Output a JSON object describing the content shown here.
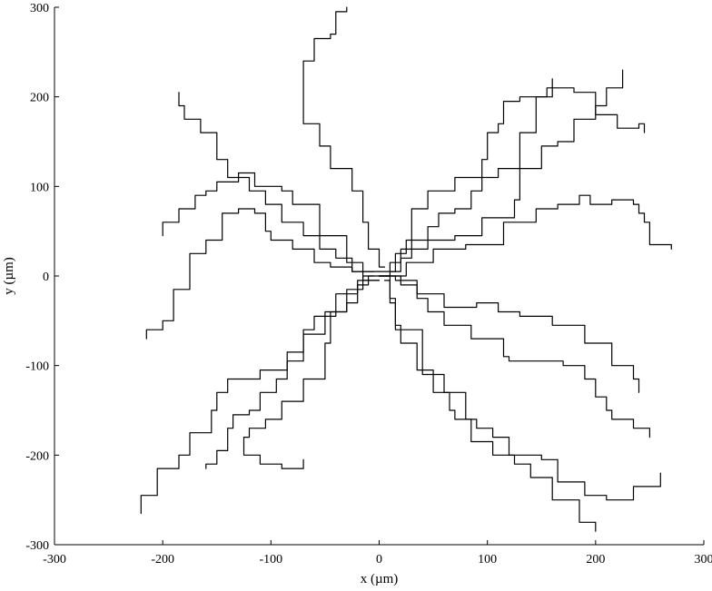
{
  "chart_data": {
    "type": "line",
    "title": "",
    "xlabel": "x (µm)",
    "ylabel": "y (µm)",
    "xlim": [
      -300,
      300
    ],
    "ylim": [
      -300,
      300
    ],
    "x_ticks": [
      -300,
      -200,
      -100,
      0,
      100,
      200,
      300
    ],
    "y_ticks": [
      -300,
      -200,
      -100,
      0,
      100,
      200,
      300
    ],
    "x_tick_labels": [
      "-300",
      "-200",
      "-100",
      "0",
      "100",
      "200",
      "300"
    ],
    "y_tick_labels": [
      "-300",
      "-200",
      "-100",
      "0",
      "100",
      "200",
      "300"
    ],
    "grid": false,
    "legend": "none",
    "line_color": "#000000",
    "series": [
      {
        "x": [
          0,
          10,
          20,
          30,
          45,
          55,
          70,
          85,
          95,
          110,
          130,
          145,
          160
        ],
        "y": [
          0,
          15,
          20,
          40,
          55,
          70,
          75,
          95,
          110,
          120,
          160,
          200,
          220
        ]
      },
      {
        "x": [
          5,
          0,
          -10,
          -15,
          -25,
          -45,
          -55,
          -70,
          -70,
          -60,
          -45,
          -40,
          -30
        ],
        "y": [
          10,
          30,
          60,
          95,
          120,
          145,
          170,
          200,
          240,
          265,
          270,
          295,
          300
        ]
      },
      {
        "x": [
          10,
          15,
          25,
          30,
          45,
          70,
          95,
          100,
          110,
          115,
          130,
          155,
          180,
          200,
          220,
          240,
          245
        ],
        "y": [
          5,
          25,
          40,
          75,
          95,
          110,
          130,
          160,
          170,
          195,
          200,
          210,
          205,
          180,
          165,
          170,
          160
        ]
      },
      {
        "x": [
          -5,
          -25,
          -45,
          -60,
          -80,
          -100,
          -105,
          -115,
          -130,
          -145,
          -160,
          -175,
          -190,
          -200,
          -215
        ],
        "y": [
          5,
          10,
          15,
          30,
          40,
          50,
          70,
          75,
          70,
          40,
          25,
          -15,
          -50,
          -60,
          -70
        ]
      },
      {
        "x": [
          0,
          -20,
          -40,
          -60,
          -70,
          -85,
          -95,
          -110,
          -120,
          -135,
          -140,
          -150,
          -160
        ],
        "y": [
          -5,
          -20,
          -45,
          -60,
          -95,
          -115,
          -130,
          -150,
          -155,
          -170,
          -195,
          -210,
          -215
        ]
      },
      {
        "x": [
          5,
          10,
          15,
          20,
          35,
          50,
          65,
          70,
          90,
          105,
          120,
          150,
          165,
          190,
          210,
          235,
          260
        ],
        "y": [
          -5,
          -30,
          -55,
          -75,
          -105,
          -130,
          -150,
          -160,
          -170,
          -180,
          -200,
          -205,
          -230,
          -245,
          -250,
          -235,
          -220
        ]
      },
      {
        "x": [
          0,
          15,
          35,
          60,
          90,
          110,
          130,
          160,
          190,
          215,
          235,
          240
        ],
        "y": [
          0,
          -5,
          -20,
          -35,
          -30,
          -40,
          -45,
          -55,
          -75,
          -100,
          -115,
          -130
        ]
      },
      {
        "x": [
          -5,
          -15,
          -30,
          -45,
          -50,
          -70,
          -90,
          -105,
          -120,
          -125,
          -110,
          -90,
          -70
        ],
        "y": [
          0,
          -15,
          -40,
          -75,
          -115,
          -140,
          -160,
          -170,
          -180,
          -200,
          -210,
          -215,
          -205
        ]
      },
      {
        "x": [
          0,
          25,
          50,
          80,
          115,
          145,
          165,
          185,
          195,
          215,
          235,
          240,
          245,
          250,
          270
        ],
        "y": [
          0,
          15,
          30,
          35,
          60,
          75,
          80,
          90,
          80,
          85,
          80,
          70,
          60,
          35,
          30
        ]
      },
      {
        "x": [
          0,
          20,
          35,
          45,
          60,
          85,
          115,
          120,
          150,
          170,
          190,
          200,
          210,
          215,
          235,
          250
        ],
        "y": [
          0,
          -10,
          -25,
          -40,
          -55,
          -70,
          -90,
          -95,
          -95,
          -100,
          -115,
          -135,
          -150,
          -160,
          -170,
          -180
        ]
      },
      {
        "x": [
          0,
          -25,
          -40,
          -55,
          -70,
          -90,
          -105,
          -120,
          -140,
          -150,
          -165,
          -180,
          -185
        ],
        "y": [
          5,
          20,
          30,
          45,
          60,
          80,
          95,
          110,
          130,
          160,
          175,
          190,
          205
        ]
      },
      {
        "x": [
          0,
          -10,
          -20,
          -30,
          -50,
          -70,
          -85,
          -110,
          -140,
          -150,
          -155,
          -175,
          -185,
          -205,
          -220
        ],
        "y": [
          0,
          -10,
          -30,
          -40,
          -65,
          -85,
          -105,
          -115,
          -130,
          -150,
          -175,
          -200,
          -215,
          -245,
          -265
        ]
      },
      {
        "x": [
          0,
          10,
          15,
          40,
          60,
          80,
          85,
          105,
          125,
          140,
          160,
          185,
          200
        ],
        "y": [
          0,
          -25,
          -60,
          -110,
          -130,
          -160,
          -185,
          -200,
          -210,
          -225,
          -250,
          -275,
          -285
        ]
      },
      {
        "x": [
          0,
          -15,
          -30,
          -55,
          -80,
          -90,
          -115,
          -130,
          -150,
          -160,
          -170,
          -185,
          -200
        ],
        "y": [
          -5,
          15,
          45,
          80,
          95,
          100,
          115,
          105,
          95,
          90,
          75,
          60,
          45
        ]
      },
      {
        "x": [
          0,
          20,
          45,
          70,
          95,
          125,
          130,
          150,
          165,
          180,
          200,
          210,
          225
        ],
        "y": [
          5,
          30,
          40,
          45,
          65,
          85,
          120,
          145,
          150,
          175,
          190,
          210,
          230
        ]
      }
    ]
  }
}
